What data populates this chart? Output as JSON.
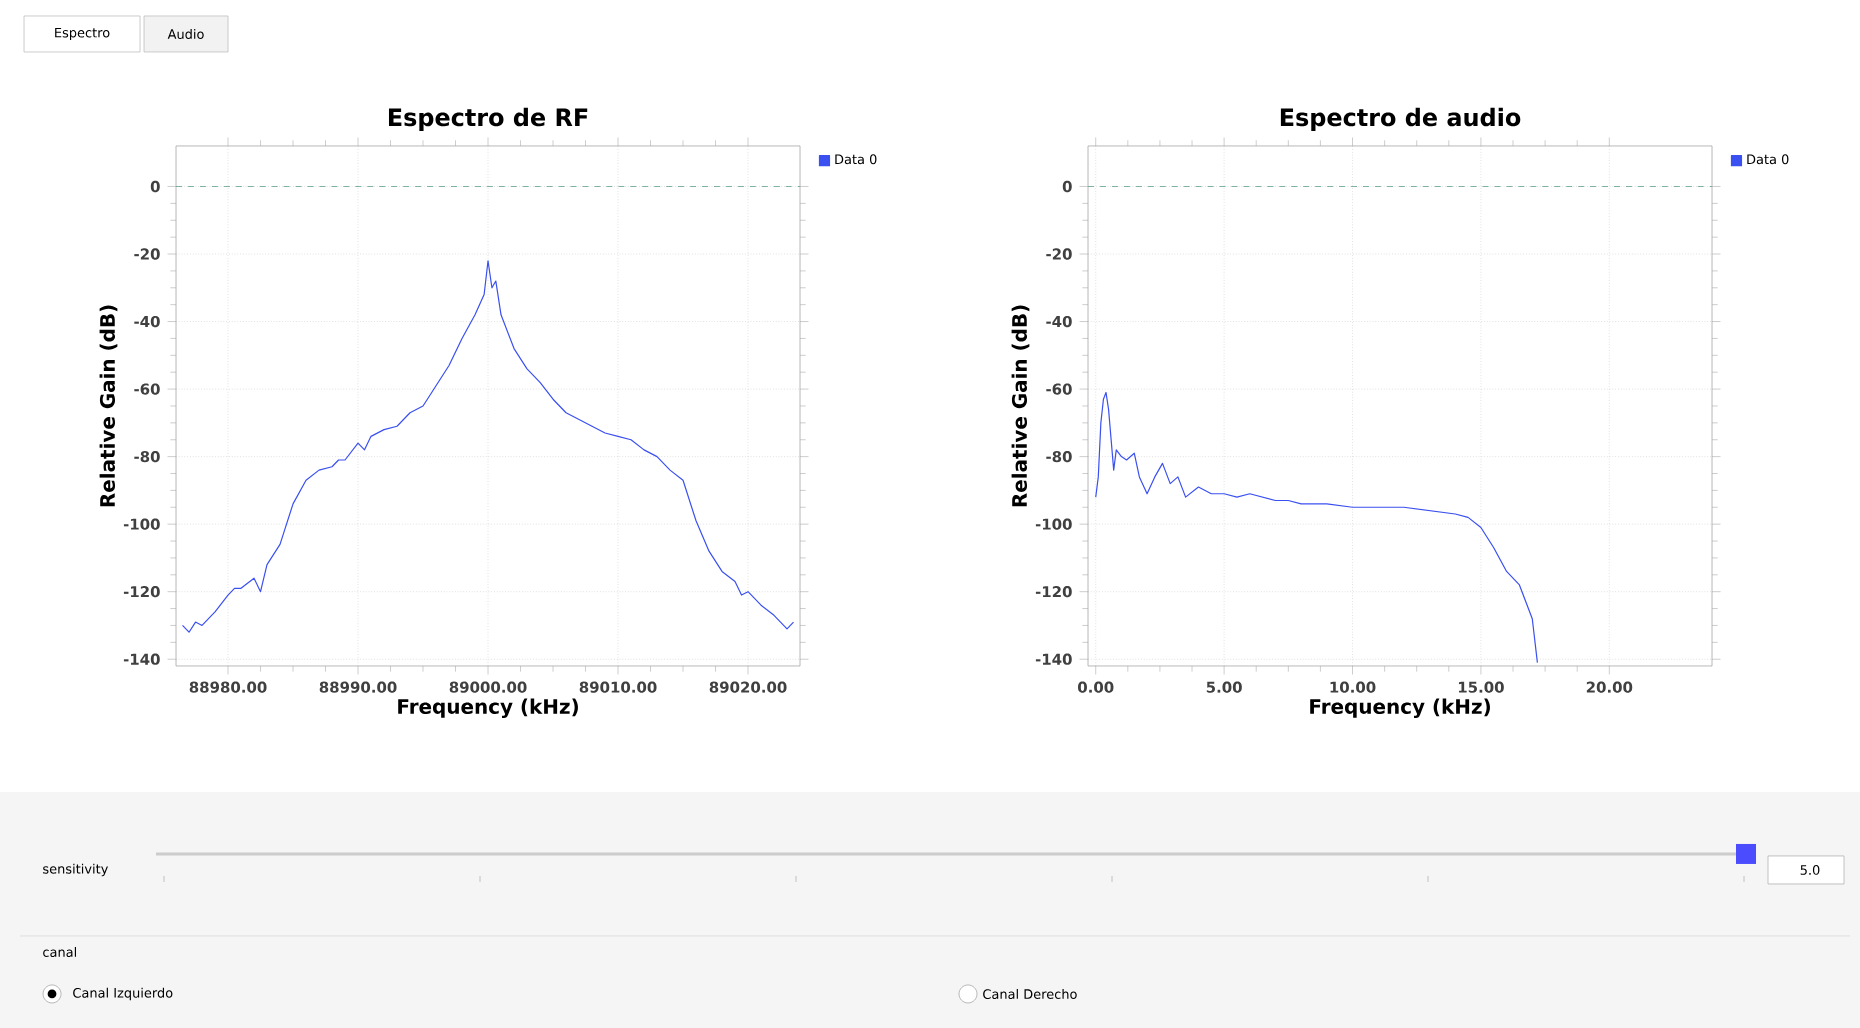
{
  "chart_data": [
    {
      "type": "line",
      "title": "Espectro de RF",
      "xlabel": "Frequency (kHz)",
      "ylabel": "Relative Gain (dB)",
      "xlim": [
        88976,
        89024
      ],
      "ylim": [
        -142,
        12
      ],
      "xticks": [
        {
          "value": 88980,
          "label": "88980.00"
        },
        {
          "value": 88990,
          "label": "88990.00"
        },
        {
          "value": 89000,
          "label": "89000.00"
        },
        {
          "value": 89010,
          "label": "89010.00"
        },
        {
          "value": 89020,
          "label": "89020.00"
        }
      ],
      "yticks": [
        -140,
        -120,
        -100,
        -80,
        -60,
        -40,
        -20,
        0
      ],
      "grid": true,
      "legend": "top right",
      "marker": "none",
      "line_style": "solid",
      "ref_lines": [
        {
          "axis": "y",
          "value": 0,
          "color": "#5f9e8a",
          "line_style": "dashed"
        }
      ],
      "series": [
        {
          "name": "Data 0",
          "color": "#3a50f0",
          "x": [
            88976.5,
            88977,
            88977.5,
            88978,
            88979,
            88980,
            88980.5,
            88981,
            88982,
            88982.5,
            88983,
            88984,
            88985,
            88986,
            88987,
            88988,
            88988.5,
            88989,
            88990,
            88990.5,
            88991,
            88992,
            88993,
            88994,
            88995,
            88996,
            88997,
            88998,
            88999,
            88999.7,
            89000,
            89000.3,
            89000.6,
            89001,
            89002,
            89003,
            89004,
            89005,
            89006,
            89007,
            89008,
            89009,
            89010,
            89011,
            89012,
            89013,
            89014,
            89015,
            89016,
            89017,
            89018,
            89019,
            89019.5,
            89020,
            89021,
            89022,
            89023,
            89023.5
          ],
          "values": [
            -130,
            -132,
            -129,
            -130,
            -126,
            -121,
            -119,
            -119,
            -116,
            -120,
            -112,
            -106,
            -94,
            -87,
            -84,
            -83,
            -81,
            -81,
            -76,
            -78,
            -74,
            -72,
            -71,
            -67,
            -65,
            -59,
            -53,
            -45,
            -38,
            -32,
            -22,
            -30,
            -28,
            -38,
            -48,
            -54,
            -58,
            -63,
            -67,
            -69,
            -71,
            -73,
            -74,
            -75,
            -78,
            -80,
            -84,
            -87,
            -99,
            -108,
            -114,
            -117,
            -121,
            -120,
            -124,
            -127,
            -131,
            -129
          ]
        }
      ]
    },
    {
      "type": "line",
      "title": "Espectro de audio",
      "xlabel": "Frequency (kHz)",
      "ylabel": "Relative Gain (dB)",
      "xlim": [
        -0.3,
        24
      ],
      "ylim": [
        -142,
        12
      ],
      "xticks": [
        {
          "value": 0,
          "label": "0.00"
        },
        {
          "value": 5,
          "label": "5.00"
        },
        {
          "value": 10,
          "label": "10.00"
        },
        {
          "value": 15,
          "label": "15.00"
        },
        {
          "value": 20,
          "label": "20.00"
        }
      ],
      "yticks": [
        -140,
        -120,
        -100,
        -80,
        -60,
        -40,
        -20,
        0
      ],
      "grid": true,
      "legend": "top right",
      "marker": "none",
      "line_style": "solid",
      "ref_lines": [
        {
          "axis": "y",
          "value": 0,
          "color": "#5f9e8a",
          "line_style": "dashed"
        }
      ],
      "series": [
        {
          "name": "Data 0",
          "color": "#3a50f0",
          "x": [
            0,
            0.1,
            0.2,
            0.3,
            0.4,
            0.5,
            0.6,
            0.7,
            0.8,
            1.0,
            1.2,
            1.5,
            1.7,
            2.0,
            2.3,
            2.6,
            2.9,
            3.2,
            3.5,
            4.0,
            4.5,
            5.0,
            5.5,
            6.0,
            7.0,
            7.5,
            8.0,
            9.0,
            10.0,
            11.0,
            12.0,
            13.0,
            14.0,
            14.5,
            15.0,
            15.5,
            16.0,
            16.5,
            17.0,
            17.2
          ],
          "values": [
            -92,
            -86,
            -70,
            -63,
            -61,
            -66,
            -75,
            -84,
            -78,
            -80,
            -81,
            -79,
            -86,
            -91,
            -86,
            -82,
            -88,
            -86,
            -92,
            -89,
            -91,
            -91,
            -92,
            -91,
            -93,
            -93,
            -94,
            -94,
            -95,
            -95,
            -95,
            -96,
            -97,
            -98,
            -101,
            -107,
            -114,
            -118,
            -128,
            -141
          ]
        }
      ]
    },
    {
      "type": "other",
      "annotations": [
        "Espectro",
        "Audio"
      ]
    },
    {
      "type": "other",
      "annotations": [
        "sensitivity",
        "5.0",
        "canal",
        "Canal Izquierdo",
        "Canal Derecho"
      ]
    }
  ]
}
